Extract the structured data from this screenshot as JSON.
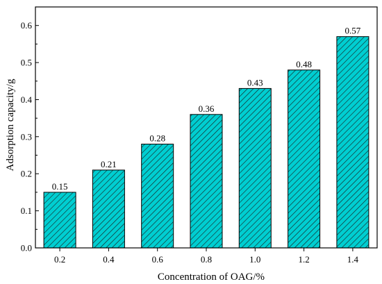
{
  "chart_data": {
    "type": "bar",
    "categories": [
      "0.2",
      "0.4",
      "0.6",
      "0.8",
      "1.0",
      "1.2",
      "1.4"
    ],
    "values": [
      0.15,
      0.21,
      0.28,
      0.36,
      0.43,
      0.48,
      0.57
    ],
    "value_labels": [
      "0.15",
      "0.21",
      "0.28",
      "0.36",
      "0.43",
      "0.48",
      "0.57"
    ],
    "xlabel": "Concentration of OAG/%",
    "ylabel": "Adsorption capacity/g",
    "ylim": [
      0.0,
      0.65
    ],
    "yticks": [
      0.0,
      0.1,
      0.2,
      0.3,
      0.4,
      0.5,
      0.6
    ],
    "ytick_labels": [
      "0.0",
      "0.1",
      "0.2",
      "0.3",
      "0.4",
      "0.5",
      "0.6"
    ],
    "bar_fill": "#00CED1",
    "hatch": "diagonal",
    "hatch_color": "#1a1a1a",
    "grid": false,
    "legend": "none"
  }
}
